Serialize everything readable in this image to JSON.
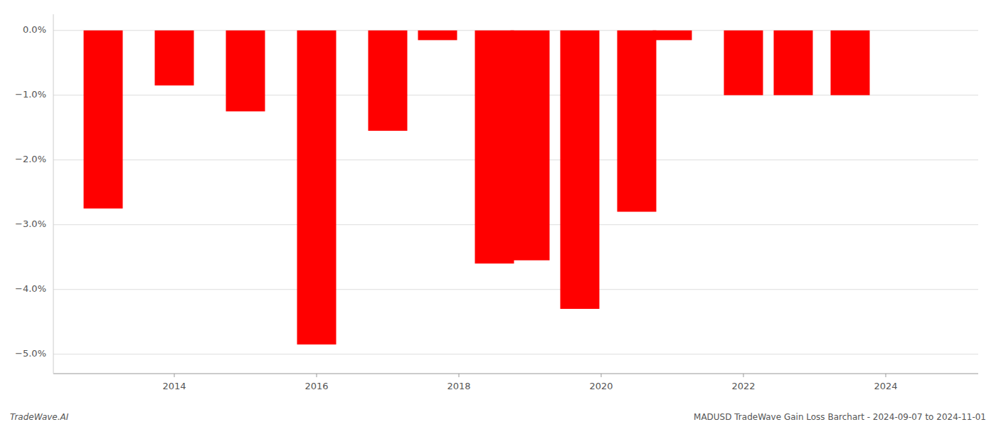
{
  "chart_data": {
    "type": "bar",
    "x": [
      2013,
      2014,
      2015,
      2016,
      2017,
      2017.7,
      2018.5,
      2019,
      2019.7,
      2020.5,
      2021,
      2022,
      2022.7,
      2023.5
    ],
    "values": [
      -2.75,
      -0.85,
      -1.25,
      -4.85,
      -1.55,
      -0.15,
      -3.6,
      -3.55,
      -4.3,
      -2.8,
      -0.15,
      -1.0,
      -1.0,
      -1.0
    ],
    "color": "#ff0000",
    "xlim": [
      2012.3,
      2025.3
    ],
    "xticks": [
      2014,
      2016,
      2018,
      2020,
      2022,
      2024
    ],
    "ylim": [
      -5.3,
      0.25
    ],
    "yticks": [
      {
        "value": 0.0,
        "label": "0.0%"
      },
      {
        "value": -1.0,
        "label": "−1.0%"
      },
      {
        "value": -2.0,
        "label": "−2.0%"
      },
      {
        "value": -3.0,
        "label": "−3.0%"
      },
      {
        "value": -4.0,
        "label": "−4.0%"
      },
      {
        "value": -5.0,
        "label": "−5.0%"
      }
    ],
    "grid": true,
    "annotations": [
      "TradeWave.AI",
      "MADUSD TradeWave Gain Loss Barchart - 2024-09-07 to 2024-11-01"
    ]
  }
}
